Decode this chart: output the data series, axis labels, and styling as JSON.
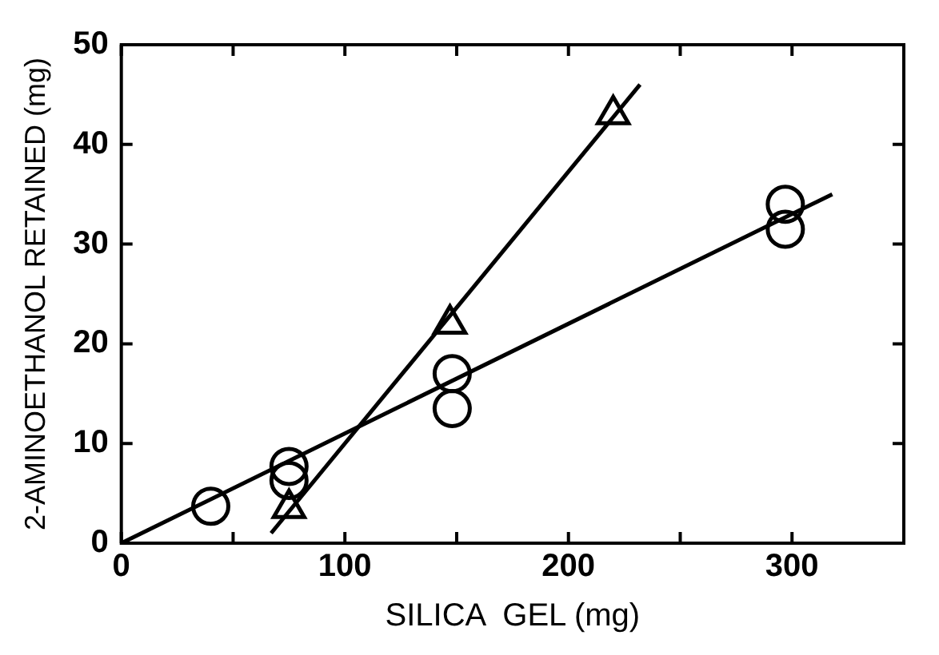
{
  "chart_data": {
    "type": "scatter",
    "xlabel": "SILICA  GEL (mg)",
    "ylabel": "2-AMINOETHANOL RETAINED (mg)",
    "xlim": [
      0,
      350
    ],
    "ylim": [
      0,
      50
    ],
    "xticks": [
      0,
      {
        "value": 50,
        "label": null
      },
      100,
      {
        "value": 150,
        "label": null
      },
      200,
      {
        "value": 250,
        "label": null
      },
      300
    ],
    "yticks": [
      0,
      10,
      20,
      30,
      40,
      50
    ],
    "grid": false,
    "legend": false,
    "series": [
      {
        "marker": "circle",
        "color": "#000000",
        "x": [
          40,
          75,
          75,
          148,
          148,
          297,
          297
        ],
        "values": [
          3.7,
          6.3,
          7.7,
          13.5,
          17,
          31.5,
          34
        ]
      },
      {
        "marker": "triangle",
        "color": "#000000",
        "x": [
          75,
          147,
          220
        ],
        "values": [
          3.5,
          22,
          43
        ]
      },
      {
        "type": "line",
        "marker": "none",
        "line_style": "solid",
        "color": "#000000",
        "x": [
          0,
          318
        ],
        "values": [
          0,
          35
        ]
      },
      {
        "type": "line",
        "marker": "none",
        "line_style": "solid",
        "color": "#000000",
        "x": [
          67,
          232
        ],
        "values": [
          1,
          46
        ]
      }
    ]
  }
}
